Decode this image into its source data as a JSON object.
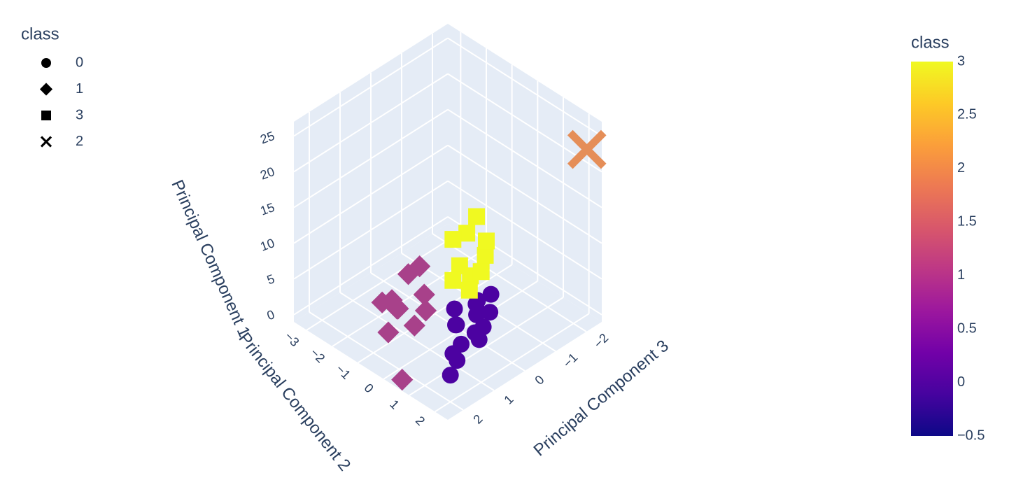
{
  "chart_data": {
    "type": "scatter3d",
    "legend_title": "class",
    "x_title": "Principal Component 2",
    "y_title": "Principal Component 3",
    "z_title": "Principal Component 1",
    "xlim": [
      -3.5,
      2.5
    ],
    "xticks": [
      {
        "value": -3,
        "label": "−3"
      },
      {
        "value": -2,
        "label": "−2"
      },
      {
        "value": -1,
        "label": "−1"
      },
      0,
      1,
      2
    ],
    "ylim": [
      -2.5,
      2.5
    ],
    "yticks": [
      {
        "value": -2,
        "label": "−2"
      },
      {
        "value": -1,
        "label": "−1"
      },
      0,
      1,
      2
    ],
    "zlim": [
      -1,
      27
    ],
    "zticks": [
      0,
      5,
      10,
      15,
      20,
      25
    ],
    "grid": true,
    "series": [
      {
        "name": "0",
        "symbol": "circle",
        "color": "#4c02a1",
        "x": [
          0.5,
          0.8,
          0.3,
          0.6,
          1.0,
          0.2,
          1.4,
          1.3,
          1.1,
          0.9,
          0.7,
          0.4,
          1.2,
          0.0,
          0.9
        ],
        "y": [
          -0.1,
          0.2,
          -0.3,
          0.0,
          0.1,
          0.3,
          1.5,
          1.2,
          0.9,
          1.0,
          -0.4,
          0.5,
          0.4,
          0.2,
          -0.2
        ],
        "z": [
          2,
          1,
          3,
          4,
          2,
          1,
          0,
          1,
          2,
          0.5,
          4.5,
          2,
          1.5,
          2.5,
          3
        ]
      },
      {
        "name": "1",
        "symbol": "diamond",
        "color": "#a8418a",
        "x": [
          -1.0,
          -1.3,
          -0.8,
          -1.5,
          -0.6,
          -1.2,
          -1.0,
          -0.4,
          -1.6,
          -0.9,
          0.6,
          -0.7
        ],
        "y": [
          1.2,
          1.0,
          1.4,
          1.3,
          1.0,
          0.7,
          0.5,
          0.8,
          0.9,
          1.6,
          2.4,
          0.6
        ],
        "z": [
          3,
          2,
          4,
          3,
          1,
          6,
          7,
          3,
          2,
          1,
          0,
          4
        ]
      },
      {
        "name": "3",
        "symbol": "square",
        "color": "#f0f921",
        "x": [
          0.2,
          0.5,
          0.0,
          -0.3,
          0.6,
          0.3,
          0.8,
          -0.1,
          0.4,
          0.7
        ],
        "y": [
          0.2,
          0.1,
          -0.2,
          0.0,
          -0.3,
          0.5,
          0.0,
          -0.6,
          -0.5,
          0.3
        ],
        "z": [
          9,
          8,
          12,
          11,
          10,
          8,
          9,
          13,
          11,
          7
        ]
      },
      {
        "name": "2",
        "symbol": "x",
        "color": "#e58e58",
        "x": [
          2.4
        ],
        "y": [
          -2.1
        ],
        "z": [
          24
        ]
      }
    ],
    "colorbar": {
      "title": "class",
      "lim": [
        -0.5,
        3
      ],
      "ticks": [
        {
          "value": -0.5,
          "label": "−0.5"
        },
        0,
        0.5,
        1,
        1.5,
        2,
        2.5,
        3
      ],
      "colorscale": [
        "#0d0887",
        "#46039f",
        "#7201a8",
        "#9c179e",
        "#bd3786",
        "#d8576b",
        "#ed7953",
        "#fb9f3a",
        "#fdca26",
        "#f0f921"
      ]
    }
  }
}
